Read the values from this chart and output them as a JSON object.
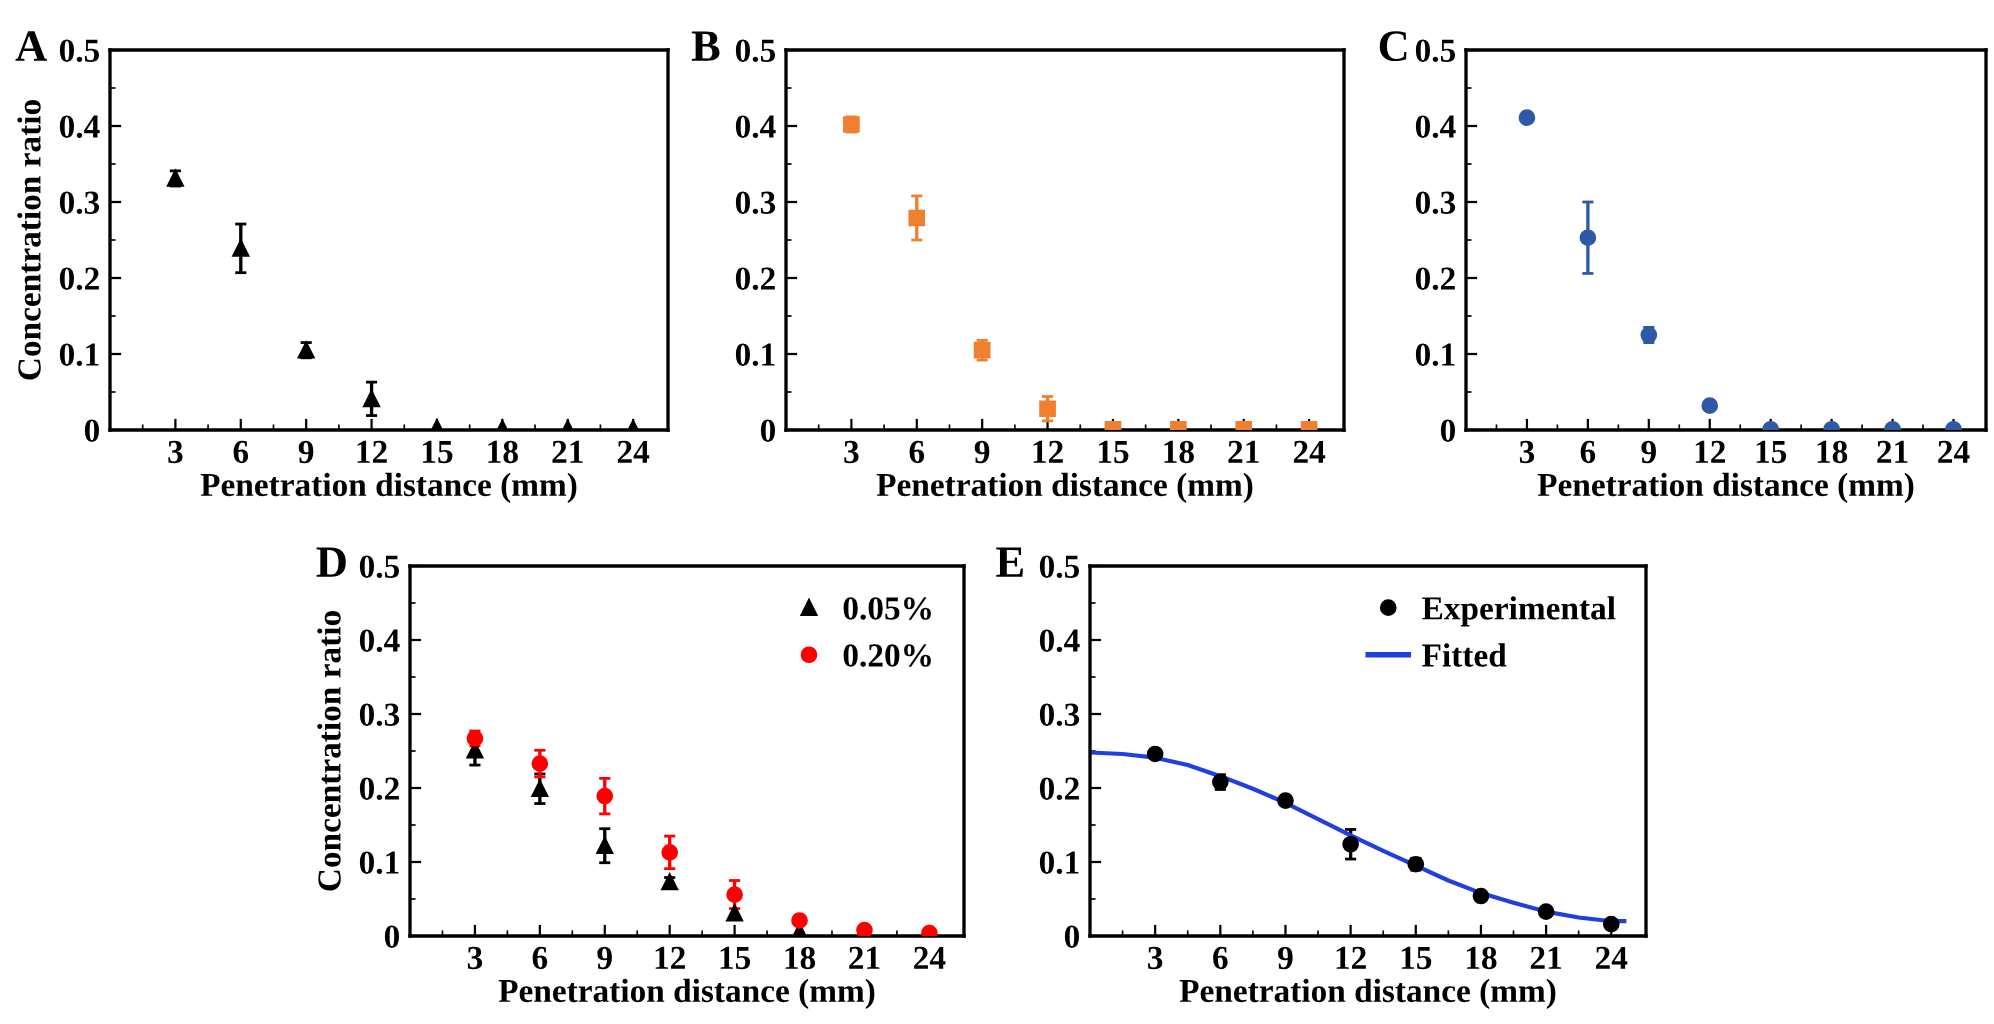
{
  "chart_data": [
    {
      "type": "scatter",
      "title": "A",
      "xlabel": "Penetration distance (mm)",
      "ylabel": "Concentration ratio",
      "x": [
        3,
        6,
        9,
        12,
        15,
        18,
        21,
        24
      ],
      "xlim": [
        0,
        25.6
      ],
      "ylim": [
        0,
        0.5
      ],
      "xticks": [
        {
          "value": 1.5,
          "label": null
        },
        3,
        {
          "value": 4.5,
          "label": null
        },
        6,
        {
          "value": 7.5,
          "label": null
        },
        9,
        {
          "value": 10.5,
          "label": null
        },
        12,
        {
          "value": 13.5,
          "label": null
        },
        15,
        {
          "value": 16.5,
          "label": null
        },
        18,
        {
          "value": 19.5,
          "label": null
        },
        21,
        {
          "value": 22.5,
          "label": null
        },
        24
      ],
      "yticks": [
        0,
        {
          "value": 0.05,
          "label": null
        },
        0.1,
        {
          "value": 0.15,
          "label": null
        },
        0.2,
        {
          "value": 0.25,
          "label": null
        },
        0.3,
        {
          "value": 0.35,
          "label": null
        },
        0.4,
        {
          "value": 0.45,
          "label": null
        },
        0.5
      ],
      "grid": false,
      "legend": false,
      "series": [
        {
          "color": "#000000",
          "marker": "triangle",
          "values": [
            0.331,
            0.239,
            0.105,
            0.041,
            0.003,
            0.002,
            0.002,
            0.002
          ],
          "errors": [
            0.01,
            0.032,
            0.01,
            0.022,
            null,
            null,
            null,
            null
          ]
        }
      ]
    },
    {
      "type": "scatter",
      "title": "B",
      "xlabel": "Penetration distance (mm)",
      "x": [
        3,
        6,
        9,
        12,
        15,
        18,
        21,
        24
      ],
      "xlim": [
        0,
        25.6
      ],
      "ylim": [
        0,
        0.5
      ],
      "xticks": [
        {
          "value": 1.5,
          "label": null
        },
        3,
        {
          "value": 4.5,
          "label": null
        },
        6,
        {
          "value": 7.5,
          "label": null
        },
        9,
        {
          "value": 10.5,
          "label": null
        },
        12,
        {
          "value": 13.5,
          "label": null
        },
        15,
        {
          "value": 16.5,
          "label": null
        },
        18,
        {
          "value": 19.5,
          "label": null
        },
        21,
        {
          "value": 22.5,
          "label": null
        },
        24
      ],
      "yticks": [
        0,
        {
          "value": 0.05,
          "label": null
        },
        0.1,
        {
          "value": 0.15,
          "label": null
        },
        0.2,
        {
          "value": 0.25,
          "label": null
        },
        0.3,
        {
          "value": 0.35,
          "label": null
        },
        0.4,
        {
          "value": 0.45,
          "label": null
        },
        0.5
      ],
      "grid": false,
      "legend": false,
      "series": [
        {
          "color": "#f07f2f",
          "marker": "square",
          "values": [
            0.402,
            0.279,
            0.105,
            0.028,
            0.001,
            0.001,
            0.001,
            0.001
          ],
          "errors": [
            0.01,
            0.029,
            0.013,
            0.016,
            null,
            null,
            null,
            null
          ]
        }
      ]
    },
    {
      "type": "scatter",
      "title": "C",
      "xlabel": "Penetration distance (mm)",
      "x": [
        3,
        6,
        9,
        12,
        15,
        18,
        21,
        24
      ],
      "xlim": [
        0,
        25.6
      ],
      "ylim": [
        0,
        0.5
      ],
      "xticks": [
        {
          "value": 1.5,
          "label": null
        },
        3,
        {
          "value": 4.5,
          "label": null
        },
        6,
        {
          "value": 7.5,
          "label": null
        },
        9,
        {
          "value": 10.5,
          "label": null
        },
        12,
        {
          "value": 13.5,
          "label": null
        },
        15,
        {
          "value": 16.5,
          "label": null
        },
        18,
        {
          "value": 19.5,
          "label": null
        },
        21,
        {
          "value": 22.5,
          "label": null
        },
        24
      ],
      "yticks": [
        0,
        {
          "value": 0.05,
          "label": null
        },
        0.1,
        {
          "value": 0.15,
          "label": null
        },
        0.2,
        {
          "value": 0.25,
          "label": null
        },
        0.3,
        {
          "value": 0.35,
          "label": null
        },
        0.4,
        {
          "value": 0.45,
          "label": null
        },
        0.5
      ],
      "grid": false,
      "legend": false,
      "series": [
        {
          "color": "#2e59a6",
          "marker": "circle",
          "values": [
            0.411,
            0.253,
            0.125,
            0.032,
            0.001,
            0.001,
            0.001,
            0.001
          ],
          "errors": [
            null,
            0.047,
            0.01,
            0.005,
            null,
            null,
            null,
            null
          ]
        }
      ]
    },
    {
      "type": "scatter",
      "title": "D",
      "xlabel": "Penetration distance (mm)",
      "ylabel": "Concentration ratio",
      "x": [
        3,
        6,
        9,
        12,
        15,
        18,
        21,
        24
      ],
      "xlim": [
        0,
        25.6
      ],
      "ylim": [
        0,
        0.5
      ],
      "xticks": [
        {
          "value": 1.5,
          "label": null
        },
        3,
        {
          "value": 4.5,
          "label": null
        },
        6,
        {
          "value": 7.5,
          "label": null
        },
        9,
        {
          "value": 10.5,
          "label": null
        },
        12,
        {
          "value": 13.5,
          "label": null
        },
        15,
        {
          "value": 16.5,
          "label": null
        },
        18,
        {
          "value": 19.5,
          "label": null
        },
        21,
        {
          "value": 22.5,
          "label": null
        },
        24
      ],
      "yticks": [
        0,
        {
          "value": 0.05,
          "label": null
        },
        0.1,
        {
          "value": 0.15,
          "label": null
        },
        0.2,
        {
          "value": 0.25,
          "label": null
        },
        0.3,
        {
          "value": 0.35,
          "label": null
        },
        0.4,
        {
          "value": 0.45,
          "label": null
        },
        0.5
      ],
      "grid": false,
      "legend": "top right",
      "series": [
        {
          "name": "0.05%",
          "color": "#000000",
          "marker": "triangle",
          "values": [
            0.251,
            0.199,
            0.122,
            0.073,
            0.031,
            0.006,
            null,
            null
          ],
          "errors": [
            0.02,
            0.02,
            0.023,
            0.006,
            null,
            null,
            null,
            null
          ]
        },
        {
          "name": "0.20%",
          "color": "#ff0000",
          "marker": "circle",
          "values": [
            0.267,
            0.233,
            0.189,
            0.113,
            0.056,
            0.021,
            0.008,
            0.004
          ],
          "errors": [
            0.01,
            0.018,
            0.024,
            0.022,
            0.019,
            null,
            null,
            null
          ]
        }
      ]
    },
    {
      "type": "scatter",
      "title": "E",
      "xlabel": "Penetration distance (mm)",
      "xlim": [
        0,
        25.6
      ],
      "ylim": [
        0,
        0.5
      ],
      "xticks": [
        {
          "value": 1.5,
          "label": null
        },
        3,
        {
          "value": 4.5,
          "label": null
        },
        6,
        {
          "value": 7.5,
          "label": null
        },
        9,
        {
          "value": 10.5,
          "label": null
        },
        12,
        {
          "value": 13.5,
          "label": null
        },
        15,
        {
          "value": 16.5,
          "label": null
        },
        18,
        {
          "value": 19.5,
          "label": null
        },
        21,
        {
          "value": 22.5,
          "label": null
        },
        24
      ],
      "yticks": [
        0,
        {
          "value": 0.05,
          "label": null
        },
        0.1,
        {
          "value": 0.15,
          "label": null
        },
        0.2,
        {
          "value": 0.25,
          "label": null
        },
        0.3,
        {
          "value": 0.35,
          "label": null
        },
        0.4,
        {
          "value": 0.45,
          "label": null
        },
        0.5
      ],
      "grid": false,
      "legend": "top right",
      "series": [
        {
          "name": "Experimental",
          "color": "#000000",
          "marker": "circle",
          "x": [
            3,
            6,
            9,
            12,
            15,
            18,
            21,
            24
          ],
          "values": [
            0.246,
            0.208,
            0.183,
            0.124,
            0.097,
            0.054,
            0.033,
            0.016
          ],
          "errors": [
            0.003,
            0.01,
            0.006,
            0.02,
            0.008,
            0.003,
            0.006,
            0.005
          ]
        },
        {
          "name": "Fitted",
          "type": "line",
          "color": "#1f3fe0",
          "marker": "none",
          "line_style": "solid",
          "x": [
            0,
            1.5,
            3,
            4.5,
            6,
            7.5,
            9,
            10.5,
            12,
            13.5,
            15,
            16.5,
            18,
            19.5,
            21,
            22.5,
            24,
            24.6
          ],
          "values": [
            0.248,
            0.246,
            0.241,
            0.231,
            0.216,
            0.199,
            0.18,
            0.158,
            0.136,
            0.115,
            0.095,
            0.075,
            0.058,
            0.045,
            0.033,
            0.025,
            0.02,
            0.02
          ]
        }
      ]
    }
  ]
}
